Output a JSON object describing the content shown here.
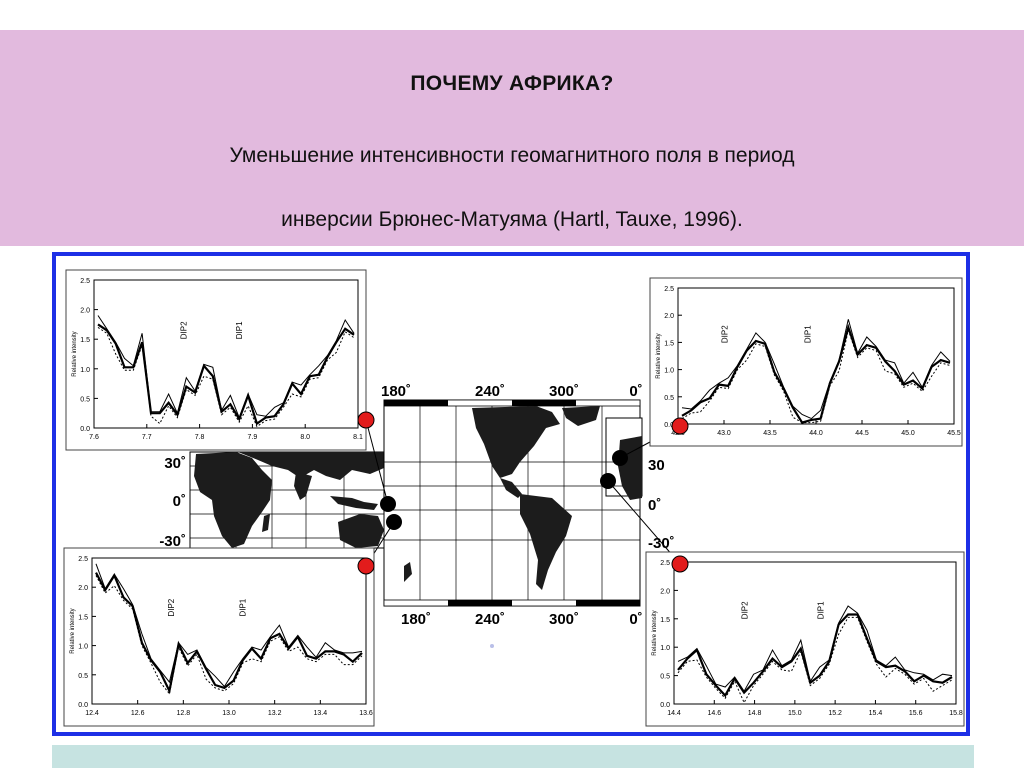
{
  "slide": {
    "title": "ПОЧЕМУ АФРИКА?",
    "subtitle_line1": "Уменьшение интенсивности геомагнитного поля в период",
    "subtitle_line2": "инверсии Брюнес-Матуяма (Hartl, Tauxe, 1996)."
  },
  "figure": {
    "map": {
      "top_lon_labels": [
        "180˚",
        "240˚",
        "300˚",
        "0˚"
      ],
      "bottom_lon_labels": [
        "180˚",
        "240˚",
        "300˚",
        "0˚"
      ],
      "left_lat_labels": [
        "30˚",
        "0˚",
        "-30˚"
      ],
      "right_lat_labels": [
        "30",
        "0˚",
        "-30˚"
      ]
    },
    "panels": [
      {
        "id": "top-left",
        "ylabel": "Relative intensity",
        "yticks": [
          "2.5",
          "2.0",
          "1.5",
          "1.0",
          "0.5",
          "0.0"
        ],
        "xticks": [
          "7.6",
          "7.7",
          "7.8",
          "7.9",
          "8.0",
          "8.1"
        ],
        "annotations": [
          "DIP2",
          "DIP1"
        ]
      },
      {
        "id": "top-right",
        "ylabel": "Relative intensity",
        "yticks": [
          "2.5",
          "2.0",
          "1.5",
          "1.0",
          "0.5",
          "0.0"
        ],
        "xticks": [
          "42.5",
          "43.0",
          "43.5",
          "44.0",
          "44.5",
          "45.0",
          "45.5"
        ],
        "annotations": [
          "DIP2",
          "DIP1"
        ]
      },
      {
        "id": "bottom-left",
        "ylabel": "Relative intensity",
        "yticks": [
          "2.5",
          "2.0",
          "1.5",
          "1.0",
          "0.5",
          "0.0"
        ],
        "xticks": [
          "12.4",
          "12.6",
          "12.8",
          "13.0",
          "13.2",
          "13.4",
          "13.6"
        ],
        "annotations": [
          "DIP2",
          "DIP1"
        ]
      },
      {
        "id": "bottom-right",
        "ylabel": "Relative intensity",
        "yticks": [
          "2.5",
          "2.0",
          "1.5",
          "1.0",
          "0.5",
          "0.0"
        ],
        "xticks": [
          "14.4",
          "14.6",
          "14.8",
          "15.0",
          "15.2",
          "15.4",
          "15.6",
          "15.8"
        ],
        "annotations": [
          "DIP2",
          "DIP1"
        ]
      }
    ]
  }
}
